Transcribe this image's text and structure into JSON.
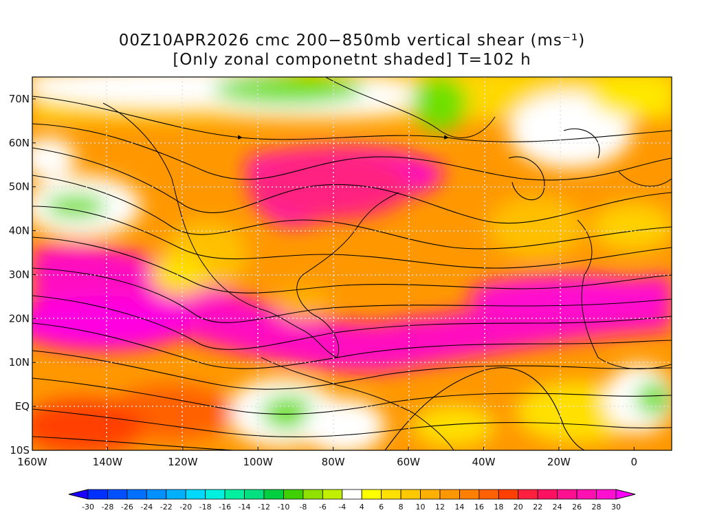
{
  "title": {
    "line1": "00Z10APR2026 cmc 200−850mb vertical shear (ms⁻¹)",
    "line2": "[Only zonal componetnt shaded] T=102 h"
  },
  "map": {
    "lat_labels": [
      "70N",
      "60N",
      "50N",
      "40N",
      "30N",
      "20N",
      "10N",
      "EQ",
      "10S"
    ],
    "lon_labels": [
      "160W",
      "140W",
      "120W",
      "100W",
      "80W",
      "60W",
      "40W",
      "20W",
      "0"
    ],
    "lat_values": [
      70,
      60,
      50,
      40,
      30,
      20,
      10,
      0,
      -10
    ],
    "lon_values": [
      -160,
      -140,
      -120,
      -100,
      -80,
      -60,
      -40,
      -20,
      0
    ]
  },
  "colorbar": {
    "labels": [
      "-30",
      "-28",
      "-26",
      "-24",
      "-22",
      "-20",
      "-18",
      "-16",
      "-14",
      "-12",
      "-10",
      "-8",
      "-6",
      "-4",
      "4",
      "6",
      "8",
      "10",
      "12",
      "14",
      "16",
      "18",
      "20",
      "22",
      "24",
      "26",
      "28",
      "30"
    ],
    "colors": [
      "#1a00ff",
      "#0030ff",
      "#0050ff",
      "#0070ff",
      "#0090ff",
      "#00b0ff",
      "#00d8ff",
      "#00f0e0",
      "#00f0a0",
      "#00e080",
      "#00d040",
      "#40d000",
      "#90e000",
      "#c0f000",
      "#ffffff",
      "#ffff00",
      "#ffe000",
      "#ffc800",
      "#ffb000",
      "#ff9800",
      "#ff8000",
      "#ff6000",
      "#ff4000",
      "#ff2040",
      "#ff1060",
      "#ff1090",
      "#ff10b0",
      "#ff10d0",
      "#ff00ff"
    ]
  }
}
